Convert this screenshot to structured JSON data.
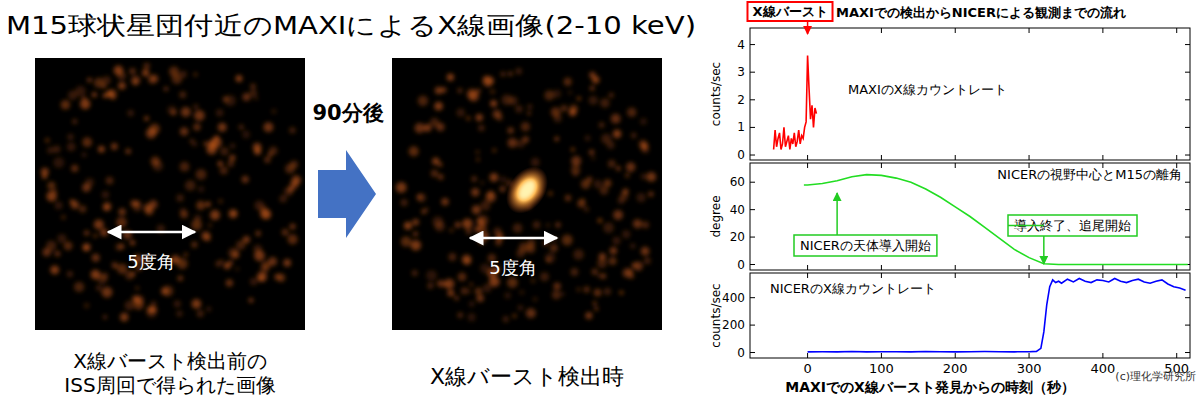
{
  "left_panel": {
    "title": "M15球状星団付近のMAXIによるX線画像(2-10 keV)",
    "arrow_label": "90分後",
    "images": [
      {
        "scale_label": "5度角",
        "caption": [
          "X線バースト検出前の",
          "ISS周回で得られた画像"
        ]
      },
      {
        "scale_label": "5度角",
        "caption": [
          "X線バースト検出時"
        ]
      }
    ]
  },
  "header": "MAXIでの検出からNICERによる観測までの流れ",
  "chart_data": [
    {
      "type": "line",
      "title": "MAXIのX線カウントレート",
      "y_label": "counts/sec",
      "x": [
        -46,
        -44,
        -42,
        -40,
        -38,
        -36,
        -34,
        -32,
        -30,
        -28,
        -26,
        -24,
        -22,
        -20,
        -18,
        -16,
        -14,
        -12,
        -10,
        -8,
        -6,
        -4,
        -2,
        0,
        2,
        4,
        6,
        8,
        10,
        12
      ],
      "values": [
        0.2,
        0.9,
        0.3,
        0.6,
        0.8,
        0.2,
        0.4,
        1.0,
        0.3,
        0.5,
        0.7,
        0.2,
        0.6,
        0.4,
        0.8,
        0.3,
        0.5,
        0.9,
        0.4,
        0.7,
        0.6,
        1.0,
        1.2,
        3.6,
        2.4,
        1.3,
        1.8,
        1.0,
        1.7,
        1.5
      ],
      "color": "#ff0000",
      "xlim": [
        -78,
        518
      ],
      "ylim": [
        -0.18,
        4.6
      ],
      "xticks": [
        0,
        100,
        200,
        300,
        400,
        500
      ],
      "yticks": [
        0,
        1,
        2,
        3,
        4
      ],
      "tick_labels": "y",
      "annotations": [
        {
          "text": "X線バースト",
          "x": 0
        }
      ]
    },
    {
      "type": "line",
      "title": "NICERの視野中心とM15の離角",
      "y_label": "degree",
      "x": [
        -5,
        0,
        20,
        40,
        60,
        80,
        100,
        120,
        140,
        160,
        180,
        200,
        220,
        240,
        260,
        280,
        300,
        320,
        340,
        380,
        420,
        460,
        500,
        515
      ],
      "values": [
        58,
        58,
        59,
        61,
        64,
        65.5,
        65,
        63,
        60,
        55,
        49,
        42,
        35,
        27,
        19,
        11,
        5,
        0.5,
        0,
        0,
        0,
        0,
        0,
        0
      ],
      "color": "#22dd22",
      "xlim": [
        -78,
        518
      ],
      "ylim": [
        -4,
        74
      ],
      "xticks": [
        0,
        100,
        200,
        300,
        400,
        500
      ],
      "yticks": [
        0,
        20,
        40,
        60
      ],
      "tick_labels": "y",
      "annotations": [
        {
          "text": "NICERの天体導入開始",
          "x": 40
        },
        {
          "text": "導入終了、追尾開始",
          "x": 320
        }
      ]
    },
    {
      "type": "line",
      "title": "NICERのX線カウントレート",
      "y_label": "counts/sec",
      "x_label": "MAXIでのX線バースト発見からの時刻（秒）",
      "x": [
        0,
        20,
        40,
        60,
        80,
        100,
        120,
        140,
        160,
        180,
        200,
        220,
        240,
        260,
        280,
        300,
        310,
        316,
        320,
        324,
        328,
        332,
        336,
        340,
        344,
        352,
        360,
        368,
        376,
        384,
        392,
        400,
        408,
        416,
        424,
        432,
        440,
        448,
        456,
        464,
        472,
        480,
        488,
        496,
        504,
        512
      ],
      "values": [
        5,
        6,
        5,
        7,
        5,
        6,
        6,
        5,
        7,
        6,
        5,
        6,
        7,
        6,
        5,
        6,
        8,
        30,
        150,
        350,
        480,
        530,
        510,
        520,
        505,
        535,
        515,
        540,
        520,
        510,
        530,
        525,
        515,
        540,
        520,
        510,
        525,
        535,
        515,
        505,
        520,
        530,
        500,
        480,
        470,
        455
      ],
      "color": "#0000ff",
      "xlim": [
        -78,
        518
      ],
      "ylim": [
        -40,
        580
      ],
      "xticks": [
        0,
        100,
        200,
        300,
        400,
        500
      ],
      "yticks": [
        0,
        200,
        400
      ]
    }
  ],
  "credit": "(c)理化学研究所"
}
